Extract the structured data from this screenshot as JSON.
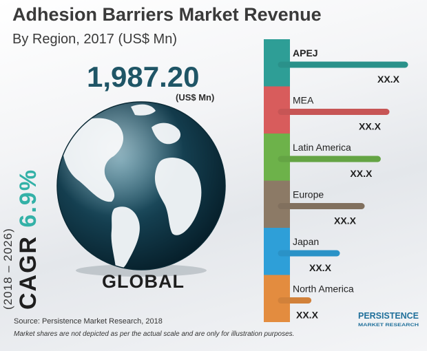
{
  "header": {
    "title": "Adhesion Barriers Market Revenue",
    "subtitle": "By Region, 2017 (US$ Mn)"
  },
  "headline": {
    "value": "1,987.20",
    "unit": "(US$ Mn)",
    "label": "GLOBAL"
  },
  "cagr": {
    "prefix": "CAGR",
    "value": "6.9%",
    "period": "(2018 – 2026)"
  },
  "footer": {
    "source": "Source: Persistence Market Research, 2018",
    "note": "Market shares are not depicted as per the actual scale and are only for illustration purposes."
  },
  "logo": {
    "line1": "PERSISTENCE",
    "line2": "MARKET RESEARCH"
  },
  "chart_data": {
    "type": "bar",
    "orientation": "horizontal",
    "title": "Adhesion Barriers Market Revenue",
    "subtitle": "By Region, 2017 (US$ Mn)",
    "categories": [
      "APEJ",
      "MEA",
      "Latin America",
      "Europe",
      "Japan",
      "North America"
    ],
    "value_labels": [
      "XX.X",
      "XX.X",
      "XX.X",
      "XX.X",
      "XX.X",
      "XX.X"
    ],
    "relative_lengths": [
      1.0,
      0.85,
      0.78,
      0.65,
      0.45,
      0.22
    ],
    "colors": [
      "#2e9e96",
      "#d85c5c",
      "#6db24a",
      "#8c7a66",
      "#2e9fd8",
      "#e38c3f"
    ]
  }
}
